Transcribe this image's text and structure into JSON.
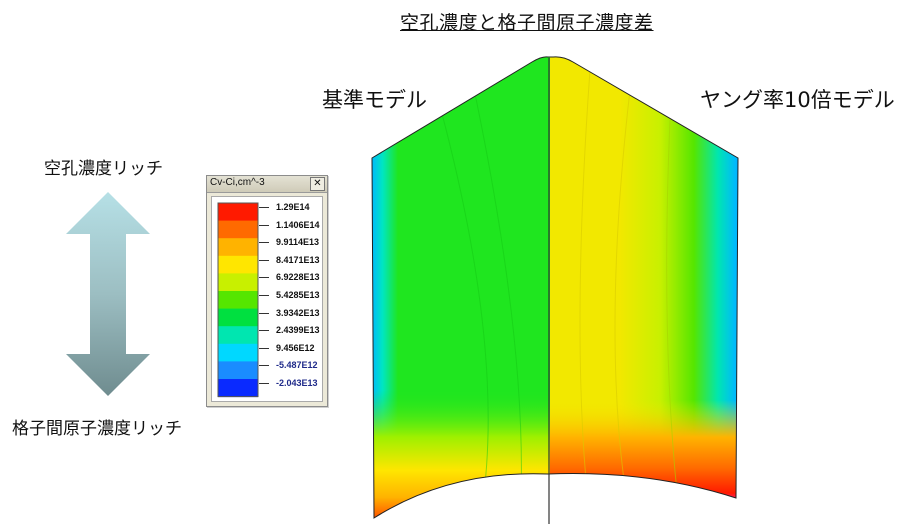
{
  "title": "空孔濃度と格子間原子濃度差",
  "left_model_label": "基準モデル",
  "right_model_label": "ヤング率10倍モデル",
  "arrow_top_label": "空孔濃度リッチ",
  "arrow_bottom_label": "格子間原子濃度リッチ",
  "legend": {
    "title": "Cv-Ci,cm^-3",
    "close_symbol": "✕",
    "levels": [
      {
        "value": "1.29E14",
        "color": "#ff1a00"
      },
      {
        "value": "1.1406E14",
        "color": "#ff6a00"
      },
      {
        "value": "9.9114E13",
        "color": "#ffb300"
      },
      {
        "value": "8.4171E13",
        "color": "#ffe600"
      },
      {
        "value": "6.9228E13",
        "color": "#c8f000"
      },
      {
        "value": "5.4285E13",
        "color": "#55e600"
      },
      {
        "value": "3.9342E13",
        "color": "#00e040"
      },
      {
        "value": "2.4399E13",
        "color": "#00e6b0"
      },
      {
        "value": "9.456E12",
        "color": "#00d8ff"
      },
      {
        "value": "-5.487E12",
        "color": "#1a8cff"
      },
      {
        "value": "-2.043E13",
        "color": "#0a2aff"
      }
    ]
  },
  "contour": {
    "left_main_color": "#1fe61f",
    "right_main_color": "#f2e800",
    "edge_color": "#1a8cff",
    "peak_color": "#ff1fd9"
  }
}
